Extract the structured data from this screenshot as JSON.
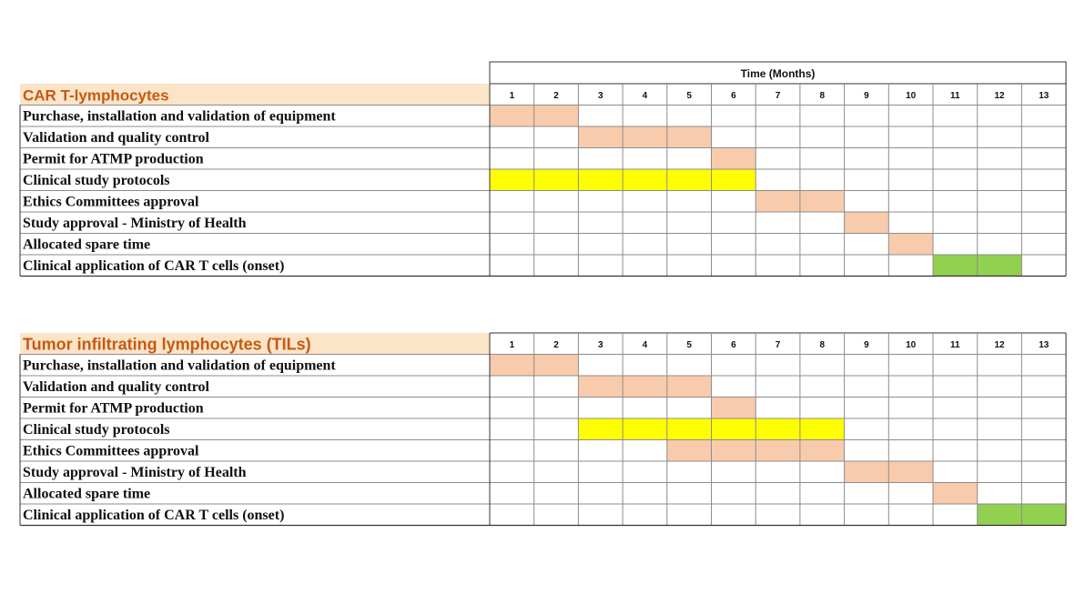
{
  "time_header": "Time (Months)",
  "colors": {
    "task": "#f8cbad",
    "protocol": "#ffff00",
    "onset": "#92d050",
    "title_bg": "#fce4c8",
    "title_text": "#c55a11",
    "grid": "#8c8c8c"
  },
  "tables": [
    {
      "title": "CAR T-lymphocytes",
      "months": [
        "1",
        "2",
        "3",
        "4",
        "5",
        "6",
        "7",
        "8",
        "9",
        "10",
        "11",
        "12",
        "13"
      ],
      "rows": [
        {
          "label": "Purchase, installation and validation of equipment",
          "start": 1,
          "end": 2,
          "kind": "task"
        },
        {
          "label": "Validation and quality control",
          "start": 3,
          "end": 5,
          "kind": "task"
        },
        {
          "label": "Permit for ATMP production",
          "start": 6,
          "end": 6,
          "kind": "task"
        },
        {
          "label": "Clinical study protocols",
          "start": 1,
          "end": 6,
          "kind": "protocol"
        },
        {
          "label": "Ethics Committees approval",
          "start": 7,
          "end": 8,
          "kind": "task"
        },
        {
          "label": "Study approval - Ministry of Health",
          "start": 9,
          "end": 9,
          "kind": "task"
        },
        {
          "label": "Allocated spare time",
          "start": 10,
          "end": 10,
          "kind": "task"
        },
        {
          "label": "Clinical application of CAR T cells (onset)",
          "start": 11,
          "end": 12,
          "kind": "onset"
        }
      ]
    },
    {
      "title": "Tumor infiltrating lymphocytes (TILs)",
      "months": [
        "1",
        "2",
        "3",
        "4",
        "5",
        "6",
        "7",
        "8",
        "9",
        "10",
        "11",
        "12",
        "13"
      ],
      "rows": [
        {
          "label": "Purchase, installation and validation of equipment",
          "start": 1,
          "end": 2,
          "kind": "task"
        },
        {
          "label": "Validation and quality control",
          "start": 3,
          "end": 5,
          "kind": "task"
        },
        {
          "label": "Permit for ATMP production",
          "start": 6,
          "end": 6,
          "kind": "task"
        },
        {
          "label": "Clinical study protocols",
          "start": 3,
          "end": 8,
          "kind": "protocol"
        },
        {
          "label": "Ethics Committees approval",
          "start": 5,
          "end": 8,
          "kind": "task"
        },
        {
          "label": "Study approval - Ministry of Health",
          "start": 9,
          "end": 10,
          "kind": "task"
        },
        {
          "label": "Allocated spare time",
          "start": 11,
          "end": 11,
          "kind": "task"
        },
        {
          "label": "Clinical application of CAR T cells (onset)",
          "start": 12,
          "end": 13,
          "kind": "onset"
        }
      ]
    }
  ]
}
